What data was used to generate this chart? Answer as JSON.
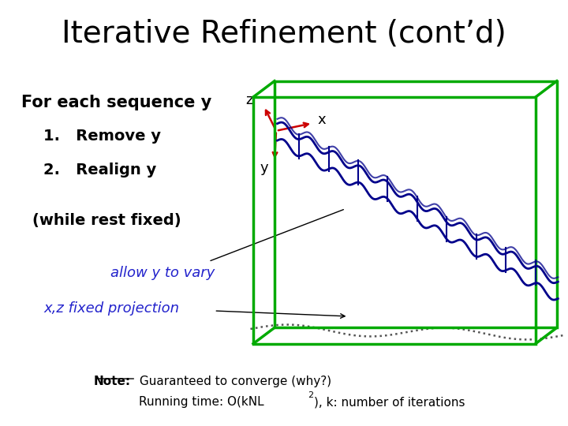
{
  "title": "Iterative Refinement (cont’d)",
  "title_fontsize": 28,
  "bg_color": "#ffffff",
  "text_color": "#000000",
  "for_each_text": "For each sequence y",
  "item1": "1.   Remove y",
  "item2": "2.   Realign y",
  "while_text": "(while rest fixed)",
  "allow_text": "allow y to vary",
  "fixed_text": "x,z fixed projection",
  "note_bold": "Note:",
  "note_text": " Guaranteed to converge (why?)",
  "running_text": "Running time: O(kNL",
  "running_sup": "2",
  "running_text2": "), k: number of iterations",
  "box_color": "#00aa00",
  "curve_color": "#00008b",
  "arrow_color": "#cc0000",
  "blue_text_color": "#2222cc"
}
